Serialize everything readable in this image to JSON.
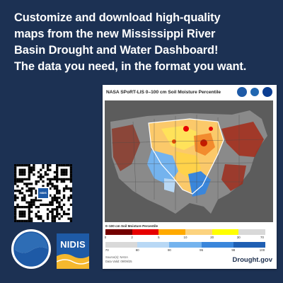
{
  "headline": [
    "Customize and download high-quality",
    "maps from the new Mississippi River",
    "Basin Drought and Water Dashboard!",
    "The data you need, in the format you want."
  ],
  "card": {
    "title": "NASA SPoRT-LIS 0–100 cm Soil Moisture Percentile",
    "legend_title": "0–100 cm Soil Moisture Percentile",
    "dry_ticks": [
      "0",
      "2",
      "5",
      "10",
      "20",
      "30",
      "70"
    ],
    "wet_ticks": [
      "70",
      "80",
      "90",
      "95",
      "98",
      "100"
    ],
    "dry_colors": [
      "#730000",
      "#e60000",
      "#ffaa00",
      "#fcd37f",
      "#ffff00",
      "#d9d9d9"
    ],
    "wet_colors": [
      "#d9d9d9",
      "#b8d8f5",
      "#74b3ee",
      "#3a86db",
      "#1f5fb3"
    ],
    "source_label": "Source(s): NASA",
    "date_label": "Data Valid: 09/09/25",
    "site": "Drought.gov"
  },
  "qr_badge_label": "NIDIS",
  "logos": {
    "noaa": "NOAA",
    "nidis": "NIDIS"
  },
  "colors": {
    "background": "#1c3153",
    "accent_blue": "#1e5aa6"
  }
}
